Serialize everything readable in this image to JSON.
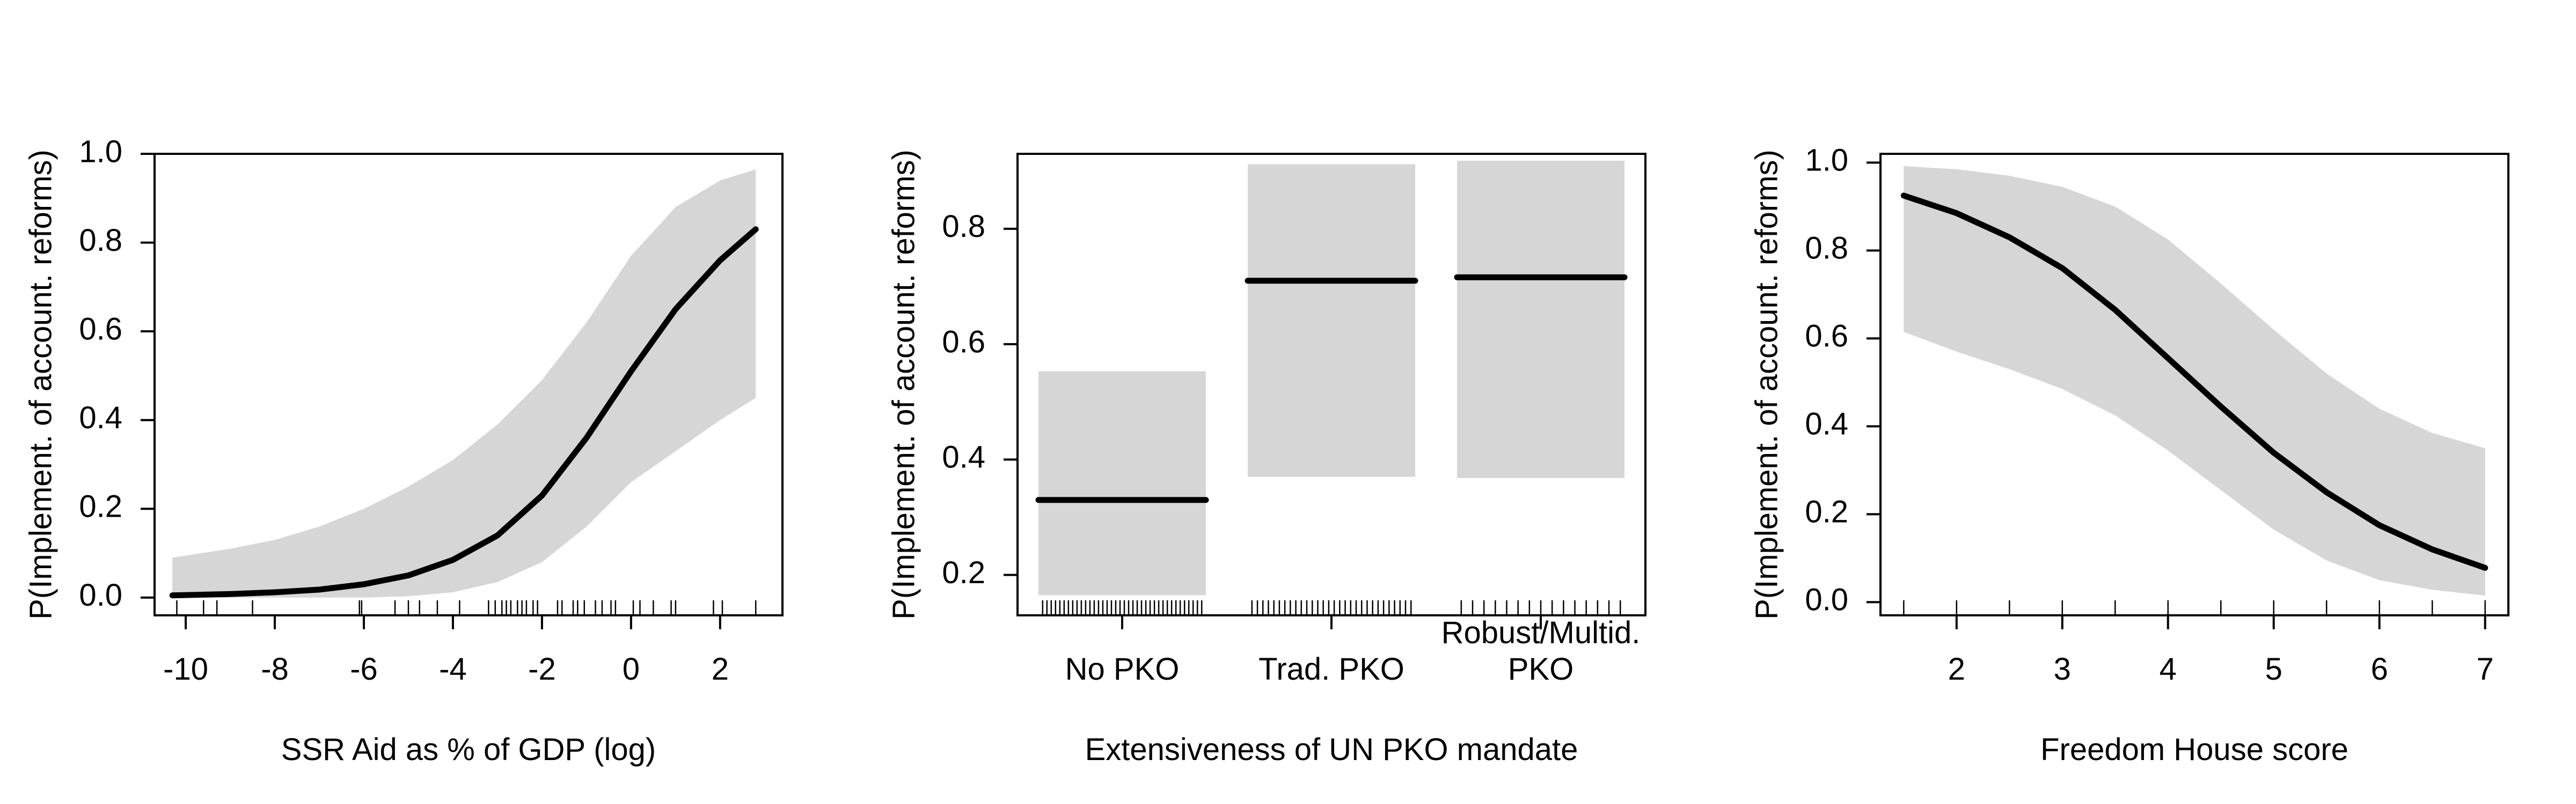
{
  "style": {
    "band_color": "#d6d6d6",
    "line_color": "#000000",
    "background": "#ffffff"
  },
  "chart_data": [
    {
      "type": "line",
      "xlabel": "SSR Aid as % of GDP (log)",
      "ylabel": "P(Implement. of account. reforms)",
      "xlim": [
        -10.7,
        3.4
      ],
      "ylim": [
        -0.04,
        1.0
      ],
      "xticks": [
        -10,
        -8,
        -6,
        -4,
        -2,
        0,
        2
      ],
      "xtick_labels": [
        "-10",
        "-8",
        "-6",
        "-4",
        "-2",
        "0",
        "2"
      ],
      "yticks": [
        0.0,
        0.2,
        0.4,
        0.6,
        0.8,
        1.0
      ],
      "ytick_labels": [
        "0.0",
        "0.2",
        "0.4",
        "0.6",
        "0.8",
        "1.0"
      ],
      "grid": false,
      "series": [
        {
          "x": [
            -10.3,
            -9,
            -8,
            -7,
            -6,
            -5,
            -4,
            -3,
            -2,
            -1,
            0,
            1,
            2,
            2.8
          ],
          "y": [
            0.005,
            0.008,
            0.012,
            0.018,
            0.03,
            0.05,
            0.085,
            0.14,
            0.23,
            0.36,
            0.51,
            0.65,
            0.76,
            0.83
          ],
          "lower": [
            0.0,
            0.0,
            0.0,
            0.0,
            0.0,
            0.003,
            0.012,
            0.035,
            0.08,
            0.16,
            0.26,
            0.33,
            0.4,
            0.45
          ],
          "upper": [
            0.09,
            0.11,
            0.13,
            0.16,
            0.2,
            0.25,
            0.31,
            0.39,
            0.49,
            0.62,
            0.77,
            0.88,
            0.94,
            0.965
          ]
        }
      ],
      "rug": [
        -10.2,
        -9.6,
        -9.3,
        -8.5,
        -6.1,
        -6.05,
        -5.3,
        -5.0,
        -4.75,
        -4.35,
        -3.85,
        -3.2,
        -3.05,
        -2.9,
        -2.8,
        -2.7,
        -2.55,
        -2.45,
        -2.35,
        -2.2,
        -2.1,
        -1.65,
        -1.55,
        -1.3,
        -1.2,
        -1.05,
        -0.8,
        -0.65,
        -0.45,
        -0.35,
        0.05,
        0.2,
        0.5,
        0.9,
        1.0,
        1.85,
        2.05,
        2.8
      ]
    },
    {
      "type": "bar",
      "xlabel": "Extensiveness of UN PKO mandate",
      "ylabel": "P(Implement. of account. reforms)",
      "xlim": [
        0.5,
        3.5
      ],
      "ylim": [
        0.13,
        0.93
      ],
      "yticks": [
        0.2,
        0.4,
        0.6,
        0.8
      ],
      "ytick_labels": [
        "0.2",
        "0.4",
        "0.6",
        "0.8"
      ],
      "grid": false,
      "categories": [
        {
          "line1": "",
          "line2": "No PKO"
        },
        {
          "line1": "",
          "line2": "Trad. PKO"
        },
        {
          "line1": "Robust/Multid.",
          "line2": "PKO"
        }
      ],
      "values": [
        0.33,
        0.71,
        0.716
      ],
      "lower": [
        0.165,
        0.37,
        0.368
      ],
      "upper": [
        0.553,
        0.912,
        0.918
      ],
      "rug_counts": [
        38,
        30,
        15
      ]
    },
    {
      "type": "line",
      "xlabel": "Freedom House score",
      "ylabel": "P(Implement. of account. reforms)",
      "xlim": [
        1.28,
        7.22
      ],
      "ylim": [
        -0.03,
        1.02
      ],
      "xticks": [
        2,
        3,
        4,
        5,
        6,
        7
      ],
      "xtick_labels": [
        "2",
        "3",
        "4",
        "5",
        "6",
        "7"
      ],
      "yticks": [
        0.0,
        0.2,
        0.4,
        0.6,
        0.8,
        1.0
      ],
      "ytick_labels": [
        "0.0",
        "0.2",
        "0.4",
        "0.6",
        "0.8",
        "1.0"
      ],
      "grid": false,
      "series": [
        {
          "x": [
            1.5,
            2,
            2.5,
            3,
            3.5,
            4,
            4.5,
            5,
            5.5,
            6,
            6.5,
            7
          ],
          "y": [
            0.925,
            0.885,
            0.83,
            0.76,
            0.665,
            0.555,
            0.445,
            0.34,
            0.25,
            0.175,
            0.12,
            0.078
          ],
          "lower": [
            0.615,
            0.57,
            0.53,
            0.485,
            0.425,
            0.345,
            0.255,
            0.165,
            0.095,
            0.05,
            0.028,
            0.015
          ],
          "upper": [
            0.992,
            0.985,
            0.97,
            0.945,
            0.9,
            0.825,
            0.725,
            0.62,
            0.52,
            0.44,
            0.385,
            0.35
          ]
        }
      ],
      "rug": [
        1.5,
        2.0,
        2.5,
        3.0,
        3.5,
        4.0,
        4.5,
        5.0,
        5.5,
        6.0,
        6.5,
        7.0
      ]
    }
  ]
}
